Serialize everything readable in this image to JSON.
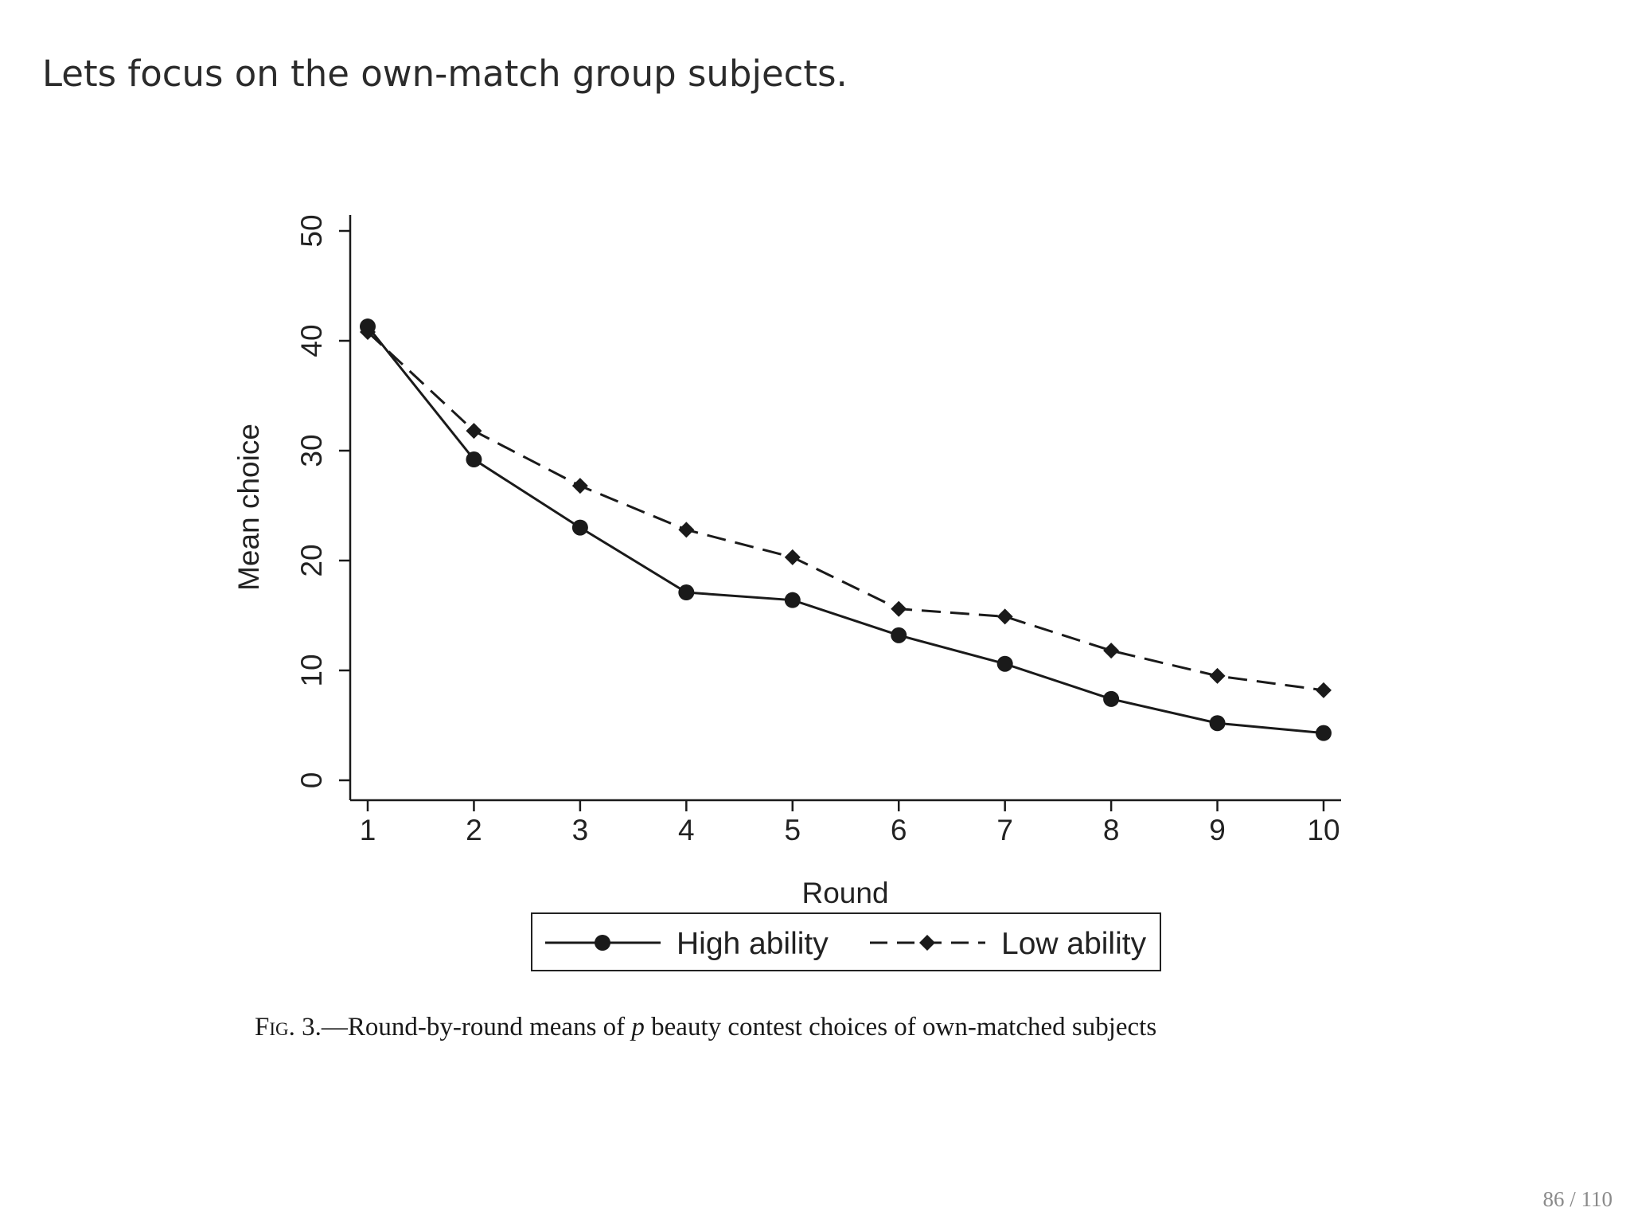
{
  "slide": {
    "heading": "Lets focus on the own-match group subjects.",
    "page_number": "86 / 110"
  },
  "caption": {
    "label": "Fig. 3.",
    "text_before_symbol": "—Round-by-round means of ",
    "symbol": "p",
    "text_after_symbol": " beauty contest choices of own-matched subjects"
  },
  "colors": {
    "line": "#1a1a1a",
    "text": "#222222"
  },
  "chart_data": {
    "type": "line",
    "title": "",
    "xlabel": "Round",
    "ylabel": "Mean choice",
    "x": [
      1,
      2,
      3,
      4,
      5,
      6,
      7,
      8,
      9,
      10
    ],
    "xticks": [
      "1",
      "2",
      "3",
      "4",
      "5",
      "6",
      "7",
      "8",
      "9",
      "10"
    ],
    "yticks": [
      "0",
      "10",
      "20",
      "30",
      "40",
      "50"
    ],
    "ylim": [
      0,
      50
    ],
    "grid": false,
    "legend_position": "bottom",
    "series": [
      {
        "name": "High ability",
        "style": "solid",
        "marker": "circle",
        "values": [
          41.3,
          29.2,
          23.0,
          17.1,
          16.4,
          13.2,
          10.6,
          7.4,
          5.2,
          4.3
        ]
      },
      {
        "name": "Low ability",
        "style": "dashed",
        "marker": "diamond",
        "values": [
          40.8,
          31.8,
          26.8,
          22.8,
          20.3,
          15.6,
          14.9,
          11.8,
          9.5,
          8.2
        ]
      }
    ]
  }
}
